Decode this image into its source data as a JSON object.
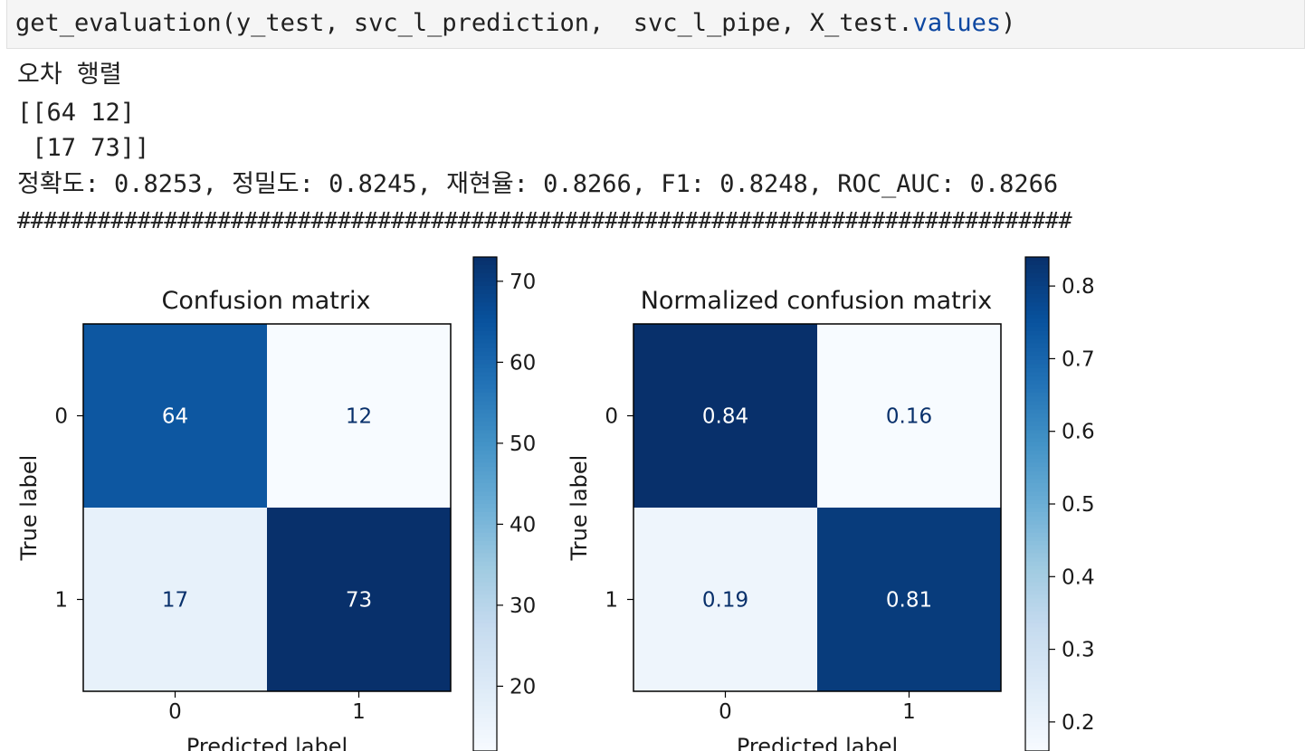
{
  "code": {
    "prefix": "get_evaluation(y_test, svc_l_prediction,  svc_l_pipe, X_test.",
    "attr": "values",
    "suffix": ")"
  },
  "output": {
    "heading": "오차 행렬",
    "matrix_line1": "[[64 12]",
    "matrix_line2": " [17 73]]",
    "metrics": "정확도: 0.8253, 정밀도: 0.8245, 재현율: 0.8266, F1: 0.8248, ROC_AUC: 0.8266",
    "separator": "###############################################################################"
  },
  "chart_data": [
    {
      "type": "heatmap",
      "title": "Confusion matrix",
      "xlabel": "Predicted label",
      "ylabel": "True label",
      "x_ticks": [
        "0",
        "1"
      ],
      "y_ticks": [
        "0",
        "1"
      ],
      "values": [
        [
          64,
          12
        ],
        [
          17,
          73
        ]
      ],
      "labels": [
        [
          "64",
          "12"
        ],
        [
          "17",
          "73"
        ]
      ],
      "colormap": "Blues",
      "colorbar": {
        "min": 12,
        "max": 73,
        "ticks": [
          20,
          30,
          40,
          50,
          60,
          70
        ]
      }
    },
    {
      "type": "heatmap",
      "title": "Normalized confusion matrix",
      "xlabel": "Predicted label",
      "ylabel": "True label",
      "x_ticks": [
        "0",
        "1"
      ],
      "y_ticks": [
        "0",
        "1"
      ],
      "values": [
        [
          0.84,
          0.16
        ],
        [
          0.19,
          0.81
        ]
      ],
      "labels": [
        [
          "0.84",
          "0.16"
        ],
        [
          "0.19",
          "0.81"
        ]
      ],
      "colormap": "Blues",
      "colorbar": {
        "min": 0.16,
        "max": 0.84,
        "ticks": [
          0.2,
          0.3,
          0.4,
          0.5,
          0.6,
          0.7,
          0.8
        ]
      }
    }
  ]
}
